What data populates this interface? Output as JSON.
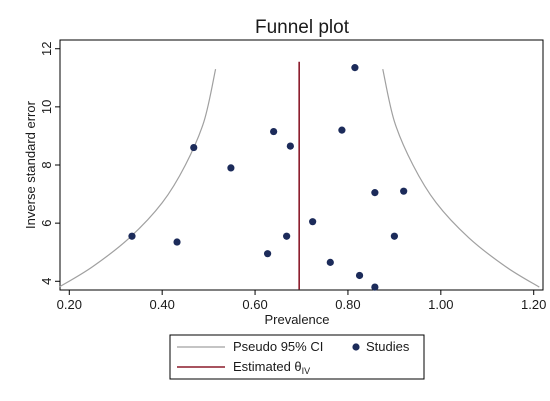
{
  "chart_data": {
    "type": "scatter",
    "title": "Funnel plot",
    "xlabel": "Prevalence",
    "ylabel": "Inverse standard error",
    "xlim": [
      0.18,
      1.22
    ],
    "ylim": [
      3.7,
      12.3
    ],
    "x_ticks": [
      "0.20",
      "0.40",
      "0.60",
      "0.80",
      "1.00",
      "1.20"
    ],
    "y_ticks": [
      "4",
      "6",
      "8",
      "10",
      "12"
    ],
    "grid": false,
    "legend_position": "bottom",
    "estimate": 0.695,
    "series": [
      {
        "name": "Studies",
        "color": "#1c2b5a",
        "points": [
          {
            "x": 0.815,
            "y": 11.35
          },
          {
            "x": 0.64,
            "y": 9.15
          },
          {
            "x": 0.787,
            "y": 9.2
          },
          {
            "x": 0.468,
            "y": 8.6
          },
          {
            "x": 0.676,
            "y": 8.65
          },
          {
            "x": 0.548,
            "y": 7.9
          },
          {
            "x": 0.858,
            "y": 7.05
          },
          {
            "x": 0.92,
            "y": 7.1
          },
          {
            "x": 0.724,
            "y": 6.05
          },
          {
            "x": 0.335,
            "y": 5.55
          },
          {
            "x": 0.668,
            "y": 5.55
          },
          {
            "x": 0.9,
            "y": 5.55
          },
          {
            "x": 0.432,
            "y": 5.35
          },
          {
            "x": 0.627,
            "y": 4.95
          },
          {
            "x": 0.762,
            "y": 4.65
          },
          {
            "x": 0.825,
            "y": 4.2
          },
          {
            "x": 0.858,
            "y": 3.8
          }
        ]
      }
    ],
    "ci_curves": {
      "name": "Pseudo 95% CI",
      "color": "#a0a0a0",
      "left": [
        [
          0.178,
          3.8
        ],
        [
          0.25,
          4.5
        ],
        [
          0.33,
          5.5
        ],
        [
          0.4,
          6.7
        ],
        [
          0.45,
          8.0
        ],
        [
          0.49,
          9.5
        ],
        [
          0.515,
          11.3
        ]
      ],
      "right": [
        [
          1.212,
          3.8
        ],
        [
          1.14,
          4.5
        ],
        [
          1.06,
          5.5
        ],
        [
          0.99,
          6.7
        ],
        [
          0.94,
          8.0
        ],
        [
          0.9,
          9.5
        ],
        [
          0.875,
          11.3
        ]
      ]
    },
    "estimate_line": {
      "name": "Estimated θIV",
      "label_main": "Estimated θ",
      "label_sub": "IV",
      "color": "#8b1a2a"
    }
  }
}
